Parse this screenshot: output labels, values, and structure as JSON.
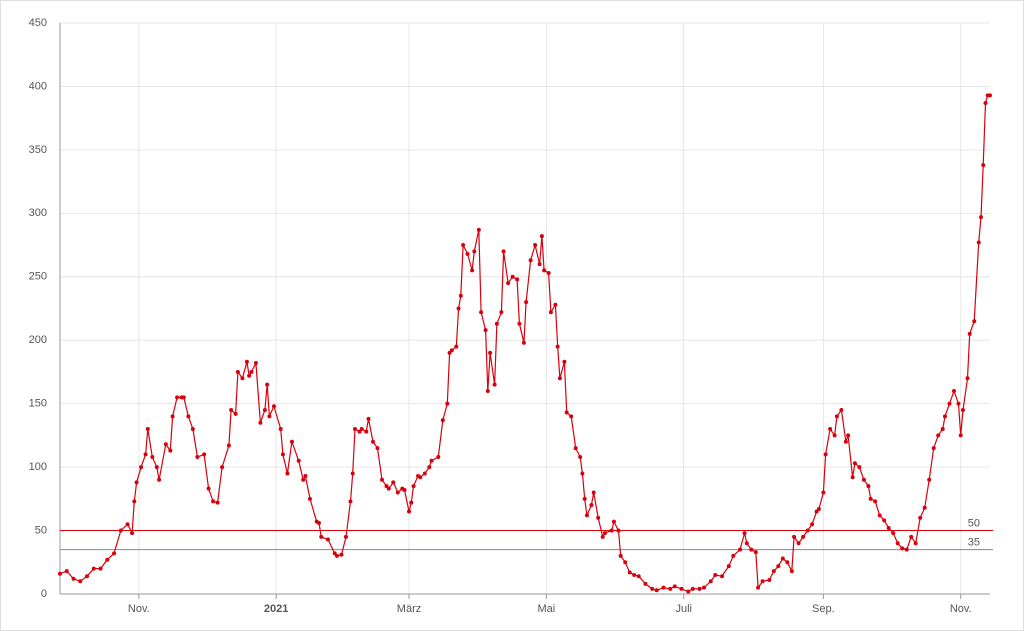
{
  "chart_data": {
    "type": "line",
    "color": "#d9000d",
    "grid": true,
    "xlim": [
      0,
      413
    ],
    "ylim": [
      0,
      450
    ],
    "yticks": [
      0,
      50,
      100,
      150,
      200,
      250,
      300,
      350,
      400,
      450
    ],
    "xticks": [
      {
        "value": 35,
        "label": "Nov."
      },
      {
        "value": 96,
        "label": "2021",
        "font_weight": "bold"
      },
      {
        "value": 155,
        "label": "März"
      },
      {
        "value": 216,
        "label": "Mai"
      },
      {
        "value": 277,
        "label": "Juli"
      },
      {
        "value": 339,
        "label": "Sep."
      },
      {
        "value": 400,
        "label": "Nov."
      }
    ],
    "reference_lines": [
      {
        "value": 50,
        "color": "#d9000d"
      },
      {
        "value": 35,
        "color": "#888888"
      }
    ],
    "x": [
      0,
      3,
      6,
      9,
      12,
      15,
      18,
      21,
      24,
      27,
      30,
      32,
      33,
      34,
      36,
      38,
      39,
      41,
      43,
      44,
      47,
      49,
      50,
      52,
      54,
      55,
      57,
      59,
      61,
      64,
      66,
      68,
      70,
      72,
      75,
      76,
      78,
      79,
      81,
      83,
      84,
      85,
      87,
      89,
      91,
      92,
      93,
      95,
      98,
      99,
      101,
      103,
      106,
      108,
      109,
      111,
      114,
      115,
      116,
      119,
      122,
      123,
      125,
      127,
      129,
      130,
      131,
      133,
      134,
      136,
      137,
      139,
      141,
      143,
      145,
      146,
      148,
      150,
      152,
      153,
      155,
      156,
      157,
      159,
      160,
      162,
      164,
      165,
      168,
      170,
      172,
      173,
      174,
      176,
      177,
      178,
      179,
      181,
      183,
      184,
      186,
      187,
      189,
      190,
      191,
      193,
      194,
      196,
      197,
      199,
      201,
      203,
      204,
      206,
      207,
      209,
      211,
      213,
      214,
      215,
      217,
      218,
      220,
      221,
      222,
      224,
      225,
      227,
      229,
      231,
      232,
      233,
      234,
      236,
      237,
      239,
      241,
      242,
      245,
      246,
      248,
      249,
      251,
      253,
      255,
      257,
      260,
      263,
      265,
      268,
      271,
      273,
      276,
      279,
      281,
      284,
      286,
      289,
      291,
      294,
      297,
      299,
      302,
      304,
      305,
      307,
      309,
      310,
      312,
      315,
      317,
      319,
      321,
      323,
      325,
      326,
      328,
      330,
      332,
      334,
      336,
      337,
      339,
      340,
      342,
      344,
      345,
      347,
      349,
      350,
      352,
      353,
      355,
      357,
      359,
      360,
      362,
      364,
      366,
      368,
      370,
      372,
      374,
      376,
      378,
      380,
      382,
      384,
      386,
      388,
      390,
      392,
      393,
      395,
      397,
      399,
      400,
      401,
      403,
      404,
      406,
      408,
      409,
      410,
      411,
      412,
      413
    ],
    "values": [
      16,
      18,
      12,
      10,
      14,
      20,
      20,
      27,
      32,
      50,
      55,
      48,
      73,
      88,
      100,
      110,
      130,
      108,
      100,
      90,
      118,
      113,
      140,
      155,
      155,
      155,
      140,
      130,
      108,
      110,
      83,
      73,
      72,
      100,
      117,
      145,
      142,
      175,
      170,
      183,
      172,
      175,
      182,
      135,
      145,
      165,
      140,
      148,
      130,
      110,
      95,
      120,
      105,
      90,
      93,
      75,
      57,
      56,
      45,
      43,
      32,
      30,
      31,
      45,
      73,
      95,
      130,
      128,
      130,
      128,
      138,
      120,
      115,
      90,
      85,
      83,
      88,
      80,
      83,
      82,
      65,
      72,
      85,
      93,
      92,
      95,
      100,
      105,
      108,
      137,
      150,
      190,
      192,
      195,
      225,
      235,
      275,
      268,
      255,
      270,
      287,
      222,
      208,
      160,
      190,
      165,
      213,
      222,
      270,
      245,
      250,
      248,
      213,
      198,
      230,
      263,
      275,
      260,
      282,
      255,
      253,
      222,
      228,
      195,
      170,
      183,
      143,
      140,
      115,
      108,
      95,
      75,
      62,
      70,
      80,
      60,
      45,
      48,
      50,
      57,
      50,
      30,
      25,
      17,
      15,
      14,
      8,
      4,
      3,
      5,
      4,
      6,
      4,
      2,
      4,
      4,
      5,
      10,
      15,
      14,
      22,
      30,
      35,
      48,
      40,
      35,
      33,
      5,
      10,
      11,
      18,
      22,
      28,
      25,
      18,
      45,
      40,
      45,
      50,
      55,
      65,
      67,
      80,
      110,
      130,
      125,
      140,
      145,
      120,
      125,
      92,
      103,
      100,
      90,
      85,
      75,
      73,
      62,
      58,
      52,
      48,
      40,
      36,
      35,
      45,
      40,
      60,
      68,
      90,
      115,
      125,
      130,
      140,
      150,
      160,
      150,
      125,
      145,
      170,
      205,
      215,
      277,
      297,
      338,
      387,
      393,
      393
    ]
  }
}
